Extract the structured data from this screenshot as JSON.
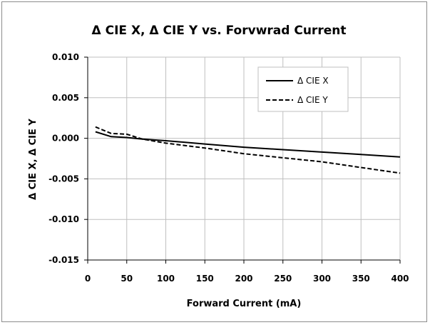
{
  "chart_data": {
    "type": "line",
    "title": "Δ CIE X, Δ CIE Y  vs.  Forvwrad  Current",
    "xlabel": "Forward Current (mA)",
    "ylabel": "Δ CIE X,  Δ CIE Y",
    "xlim": [
      0,
      400
    ],
    "ylim": [
      -0.015,
      0.01
    ],
    "x_ticks": [
      0,
      50,
      100,
      150,
      200,
      250,
      300,
      350,
      400
    ],
    "y_ticks": [
      0.01,
      0.005,
      0.0,
      -0.005,
      -0.01,
      -0.015
    ],
    "x_tick_labels": [
      "0",
      "50",
      "100",
      "150",
      "200",
      "250",
      "300",
      "350",
      "400"
    ],
    "y_tick_labels": [
      "0.010",
      "0.005",
      "0.000",
      "-0.005",
      "-0.010",
      "-0.015"
    ],
    "grid": true,
    "legend_position": "top-right",
    "series": [
      {
        "name": "Δ CIE X",
        "style": "solid",
        "color": "#000000",
        "x": [
          10,
          30,
          50,
          70,
          100,
          150,
          200,
          250,
          300,
          350,
          400
        ],
        "y": [
          0.0008,
          0.0002,
          0.0001,
          -0.0001,
          -0.0003,
          -0.0007,
          -0.0011,
          -0.0014,
          -0.0017,
          -0.002,
          -0.0023
        ]
      },
      {
        "name": "Δ CIE Y",
        "style": "dashed",
        "color": "#000000",
        "x": [
          10,
          30,
          50,
          70,
          100,
          150,
          200,
          250,
          300,
          350,
          400
        ],
        "y": [
          0.0014,
          0.0006,
          0.0005,
          -0.0001,
          -0.0006,
          -0.0012,
          -0.0019,
          -0.0024,
          -0.0029,
          -0.0036,
          -0.0043
        ]
      }
    ]
  }
}
